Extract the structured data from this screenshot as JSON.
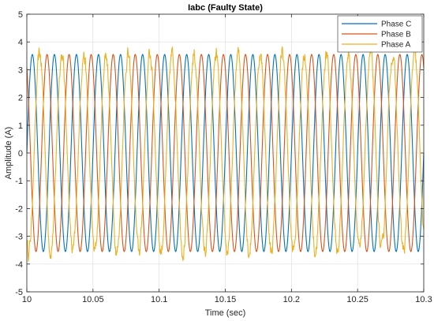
{
  "chart_data": {
    "type": "line",
    "title": "Iabc (Faulty State)",
    "xlabel": "Time (sec)",
    "ylabel": "Amplitude (A)",
    "xlim": [
      10,
      10.3
    ],
    "ylim": [
      -5,
      5
    ],
    "xticks": [
      10,
      10.05,
      10.1,
      10.15,
      10.2,
      10.25,
      10.3
    ],
    "xtick_labels": [
      "10",
      "10.05",
      "10.1",
      "10.15",
      "10.2",
      "10.25",
      "10.3"
    ],
    "yticks": [
      -5,
      -4,
      -3,
      -2,
      -1,
      0,
      1,
      2,
      3,
      4,
      5
    ],
    "ytick_labels": [
      "-5",
      "-4",
      "-3",
      "-2",
      "-1",
      "0",
      "1",
      "2",
      "3",
      "4",
      "5"
    ],
    "grid": true,
    "legend_position": "top-right",
    "frequency_hz": 60,
    "amplitude": 3.55,
    "series": [
      {
        "name": "Phase C",
        "color": "#0072BD",
        "phase_deg": 0,
        "noise": 0.0
      },
      {
        "name": "Phase B",
        "color": "#D95319",
        "phase_deg": 120,
        "noise": 0.0
      },
      {
        "name": "Phase A",
        "color": "#EDB120",
        "phase_deg": 240,
        "noise": 0.35
      }
    ]
  }
}
